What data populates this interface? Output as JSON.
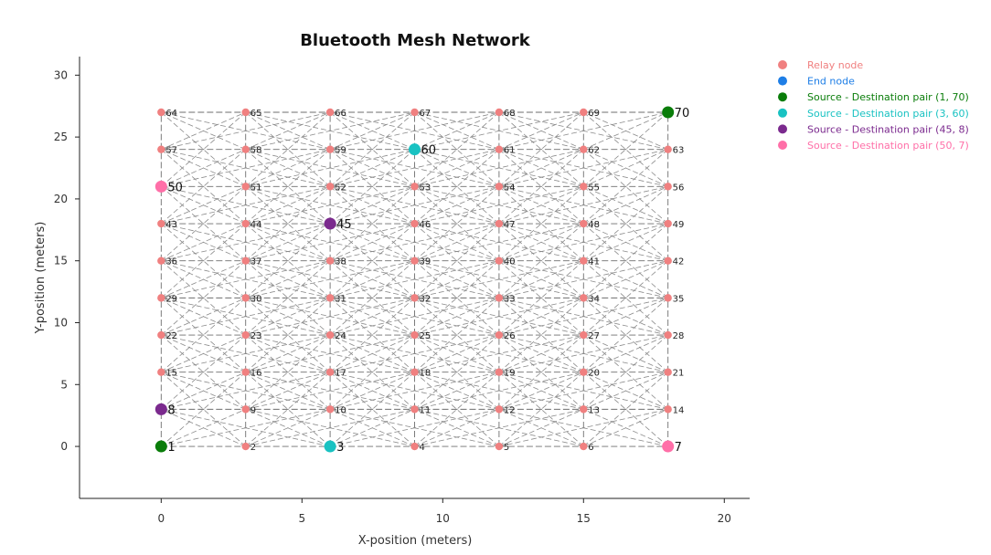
{
  "chart_data": {
    "type": "scatter",
    "title": "Bluetooth Mesh Network",
    "xlabel": "X-position (meters)",
    "ylabel": "Y-position (meters)",
    "xlim": [
      -2.9,
      20.9
    ],
    "ylim": [
      -4.2,
      31.5
    ],
    "xticks": [
      0,
      5,
      10,
      15,
      20
    ],
    "yticks": [
      0,
      5,
      10,
      15,
      20,
      25,
      30
    ],
    "grid": false,
    "legend_position": "right",
    "grid_layout": {
      "columns": 7,
      "rows": 10,
      "x_spacing": 3,
      "y_spacing": 3
    },
    "legend": [
      {
        "label": "Relay node",
        "color": "#f08080"
      },
      {
        "label": "End node",
        "color": "#1e7ee6"
      },
      {
        "label": "Source - Destination pair (1, 70)",
        "color": "#0a7d0a"
      },
      {
        "label": "Source - Destination pair (3, 60)",
        "color": "#19c2c2"
      },
      {
        "label": "Source - Destination pair (45, 8)",
        "color": "#7b2a8e"
      },
      {
        "label": "Source - Destination pair (50, 7)",
        "color": "#ff6fa8"
      }
    ],
    "special_nodes": [
      {
        "id": 1,
        "color": "#0a7d0a"
      },
      {
        "id": 70,
        "color": "#0a7d0a"
      },
      {
        "id": 3,
        "color": "#19c2c2"
      },
      {
        "id": 60,
        "color": "#19c2c2"
      },
      {
        "id": 45,
        "color": "#7b2a8e"
      },
      {
        "id": 8,
        "color": "#7b2a8e"
      },
      {
        "id": 50,
        "color": "#ff6fa8"
      },
      {
        "id": 7,
        "color": "#ff6fa8"
      }
    ],
    "relay_color": "#f08080"
  }
}
